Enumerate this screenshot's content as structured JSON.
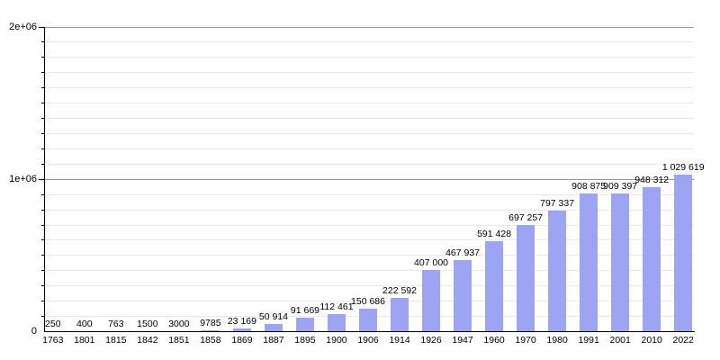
{
  "chart_data": {
    "type": "bar",
    "title": "",
    "xlabel": "",
    "ylabel": "",
    "grid": "on",
    "legend": "none",
    "ylim": [
      0,
      2000000
    ],
    "minor_grid_step": 100000,
    "categories": [
      "1763",
      "1801",
      "1815",
      "1842",
      "1851",
      "1858",
      "1869",
      "1887",
      "1895",
      "1900",
      "1906",
      "1914",
      "1926",
      "1947",
      "1960",
      "1970",
      "1980",
      "1991",
      "2001",
      "2010",
      "2022"
    ],
    "values": [
      250,
      400,
      763,
      1500,
      3000,
      9785,
      23169,
      50914,
      91669,
      112461,
      150686,
      222592,
      407000,
      467937,
      591428,
      697257,
      797337,
      908875,
      909397,
      948312,
      1029619
    ],
    "value_labels": [
      "250",
      "400",
      "763",
      "1500",
      "3000",
      "9785",
      "23 169",
      "50 914",
      "91 669",
      "112 461",
      "150 686",
      "222 592",
      "407 000",
      "467 937",
      "591 428",
      "697 257",
      "797 337",
      "908 875",
      "909 397",
      "948 312",
      "1 029 619"
    ],
    "y_ticks": [
      {
        "value": 0,
        "label": "0"
      },
      {
        "value": 1000000,
        "label": "1e+06"
      },
      {
        "value": 2000000,
        "label": "2e+06"
      }
    ],
    "colors": {
      "bar": "#9DA5F2",
      "axis": "#000000",
      "major_gridline": "#999999",
      "minor_gridline": "#EAEAEA",
      "text": "#000000",
      "background": "#FFFFFF"
    }
  }
}
